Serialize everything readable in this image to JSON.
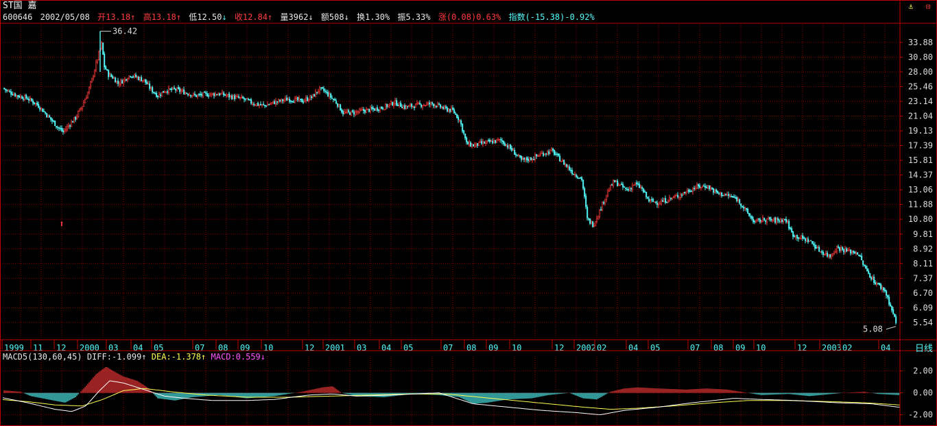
{
  "stock": {
    "title": "ST国  嘉",
    "code": "600646",
    "date": "2002/05/08",
    "open_label": "开",
    "open": "13.18",
    "high_label": "高",
    "high": "13.18",
    "low_label": "低",
    "low": "12.50",
    "close_label": "收",
    "close": "12.84",
    "volume_label": "量",
    "volume": "3962",
    "amount_label": "额",
    "amount": "508",
    "turnover_label": "换",
    "turnover": "1.30%",
    "amplitude_label": "振",
    "amplitude": "5.33%",
    "change_label": "涨",
    "change": "(0.08)0.63%",
    "index_label": "指数",
    "index": "(-15.38)-0.92%"
  },
  "macd_header": {
    "name": "MACD5(130,60,45)",
    "diff_label": "DIFF:",
    "diff": "-1.099",
    "dea_label": "DEA:",
    "dea": "-1.378",
    "macd_label": "MACD:",
    "macd": "0.559"
  },
  "controls": {
    "daily_label": "日线",
    "anchor_icon": "⚓",
    "window_icon": "⊡"
  },
  "colors": {
    "up": "#ff3b3b",
    "down": "#54fcfc",
    "grid": "#8a0000",
    "frame": "#c00000",
    "dif": "#ffffff",
    "dea": "#ffff54"
  },
  "chart_data": {
    "type": "candlestick",
    "price_axis_ticks": [
      "33.88",
      "30.80",
      "28.00",
      "25.46",
      "23.14",
      "21.04",
      "19.13",
      "17.39",
      "15.81",
      "14.37",
      "13.06",
      "11.88",
      "10.80",
      "9.81",
      "8.92",
      "8.11",
      "7.37",
      "6.70",
      "6.09",
      "5.54"
    ],
    "price_range": [
      5.0,
      38.0
    ],
    "log_scale": true,
    "max_label": "36.42",
    "min_label": "5.08",
    "date_axis_labels": [
      "1999",
      "11",
      "12",
      "2000",
      "03",
      "04",
      "05",
      "07",
      "08",
      "09",
      "10",
      "12",
      "2001",
      "03",
      "04",
      "05",
      "07",
      "08",
      "09",
      "10",
      "12",
      "2002",
      "02",
      "04",
      "05",
      "07",
      "08",
      "09",
      "10",
      "12",
      "2003",
      "02",
      "04"
    ],
    "price_keypoints": [
      [
        0,
        25.5
      ],
      [
        10,
        24.8
      ],
      [
        25,
        24.0
      ],
      [
        40,
        23.6
      ],
      [
        55,
        22.6
      ],
      [
        70,
        21.0
      ],
      [
        85,
        19.5
      ],
      [
        92,
        19.0
      ],
      [
        100,
        19.8
      ],
      [
        110,
        20.8
      ],
      [
        120,
        22.5
      ],
      [
        128,
        24.5
      ],
      [
        135,
        27.0
      ],
      [
        142,
        30.5
      ],
      [
        148,
        33.5
      ],
      [
        152,
        29.0
      ],
      [
        158,
        27.5
      ],
      [
        165,
        27.0
      ],
      [
        172,
        26.0
      ],
      [
        180,
        26.5
      ],
      [
        190,
        27.5
      ],
      [
        200,
        27.0
      ],
      [
        210,
        26.5
      ],
      [
        220,
        25.0
      ],
      [
        230,
        24.0
      ],
      [
        240,
        24.8
      ],
      [
        255,
        25.0
      ],
      [
        270,
        24.5
      ],
      [
        285,
        24.0
      ],
      [
        300,
        24.2
      ],
      [
        320,
        24.3
      ],
      [
        340,
        23.8
      ],
      [
        355,
        23.5
      ],
      [
        370,
        22.8
      ],
      [
        385,
        22.5
      ],
      [
        400,
        23.0
      ],
      [
        420,
        23.5
      ],
      [
        440,
        23.2
      ],
      [
        455,
        23.8
      ],
      [
        465,
        25.0
      ],
      [
        472,
        24.8
      ],
      [
        480,
        24.0
      ],
      [
        490,
        23.0
      ],
      [
        500,
        21.5
      ],
      [
        515,
        21.5
      ],
      [
        530,
        21.8
      ],
      [
        545,
        22.0
      ],
      [
        560,
        22.3
      ],
      [
        575,
        23.0
      ],
      [
        590,
        22.3
      ],
      [
        610,
        22.6
      ],
      [
        630,
        22.8
      ],
      [
        650,
        22.0
      ],
      [
        660,
        21.8
      ],
      [
        670,
        20.5
      ],
      [
        680,
        17.6
      ],
      [
        690,
        17.4
      ],
      [
        700,
        17.6
      ],
      [
        715,
        17.8
      ],
      [
        730,
        18.0
      ],
      [
        745,
        17.0
      ],
      [
        760,
        15.8
      ],
      [
        775,
        16.0
      ],
      [
        790,
        16.5
      ],
      [
        805,
        16.8
      ],
      [
        815,
        16.0
      ],
      [
        825,
        15.3
      ],
      [
        835,
        14.6
      ],
      [
        848,
        14.0
      ],
      [
        856,
        10.8
      ],
      [
        865,
        10.4
      ],
      [
        875,
        11.5
      ],
      [
        885,
        12.8
      ],
      [
        895,
        13.8
      ],
      [
        905,
        13.4
      ],
      [
        915,
        13.0
      ],
      [
        925,
        13.6
      ],
      [
        935,
        13.2
      ],
      [
        945,
        12.2
      ],
      [
        960,
        12.0
      ],
      [
        975,
        12.3
      ],
      [
        990,
        12.6
      ],
      [
        1000,
        12.9
      ],
      [
        1015,
        13.3
      ],
      [
        1030,
        13.4
      ],
      [
        1045,
        12.8
      ],
      [
        1060,
        12.6
      ],
      [
        1075,
        12.3
      ],
      [
        1090,
        11.2
      ],
      [
        1100,
        10.6
      ],
      [
        1115,
        10.8
      ],
      [
        1130,
        10.7
      ],
      [
        1145,
        10.8
      ],
      [
        1155,
        9.8
      ],
      [
        1165,
        9.6
      ],
      [
        1180,
        9.4
      ],
      [
        1195,
        8.8
      ],
      [
        1210,
        8.5
      ],
      [
        1220,
        9.0
      ],
      [
        1235,
        8.8
      ],
      [
        1250,
        8.7
      ],
      [
        1262,
        7.8
      ],
      [
        1275,
        7.2
      ],
      [
        1290,
        6.8
      ],
      [
        1300,
        6.0
      ],
      [
        1308,
        5.4
      ]
    ],
    "macd_axis_ticks": [
      "2.00",
      "0.00",
      "-2.00"
    ],
    "macd_range": [
      -2.4,
      2.6
    ],
    "macd_keypoints": [
      [
        0,
        0.25
      ],
      [
        30,
        0.1
      ],
      [
        45,
        -0.3
      ],
      [
        70,
        -0.6
      ],
      [
        95,
        -0.9
      ],
      [
        110,
        -0.4
      ],
      [
        125,
        0.6
      ],
      [
        140,
        1.7
      ],
      [
        155,
        2.4
      ],
      [
        165,
        2.0
      ],
      [
        180,
        1.5
      ],
      [
        200,
        1.1
      ],
      [
        215,
        0.5
      ],
      [
        230,
        -0.5
      ],
      [
        255,
        -0.7
      ],
      [
        280,
        -0.4
      ],
      [
        320,
        -0.2
      ],
      [
        360,
        -0.5
      ],
      [
        400,
        -0.3
      ],
      [
        440,
        0.1
      ],
      [
        470,
        0.5
      ],
      [
        485,
        0.6
      ],
      [
        498,
        0.0
      ],
      [
        520,
        -0.3
      ],
      [
        560,
        -0.4
      ],
      [
        600,
        -0.1
      ],
      [
        640,
        -0.2
      ],
      [
        670,
        -0.4
      ],
      [
        690,
        -1.0
      ],
      [
        710,
        -0.9
      ],
      [
        740,
        -0.6
      ],
      [
        775,
        -0.5
      ],
      [
        800,
        -0.2
      ],
      [
        830,
        0.0
      ],
      [
        850,
        -0.5
      ],
      [
        870,
        -0.6
      ],
      [
        890,
        0.1
      ],
      [
        910,
        0.4
      ],
      [
        930,
        0.5
      ],
      [
        960,
        0.4
      ],
      [
        1000,
        0.3
      ],
      [
        1030,
        0.4
      ],
      [
        1060,
        0.3
      ],
      [
        1090,
        0.0
      ],
      [
        1110,
        -0.2
      ],
      [
        1150,
        -0.1
      ],
      [
        1180,
        -0.3
      ],
      [
        1230,
        0.0
      ],
      [
        1260,
        0.1
      ],
      [
        1280,
        -0.1
      ],
      [
        1310,
        -0.2
      ]
    ],
    "dif_keypoints": [
      [
        0,
        -0.4
      ],
      [
        40,
        -0.9
      ],
      [
        80,
        -1.5
      ],
      [
        105,
        -1.7
      ],
      [
        125,
        -1.2
      ],
      [
        145,
        0.2
      ],
      [
        160,
        1.1
      ],
      [
        180,
        0.9
      ],
      [
        210,
        0.3
      ],
      [
        240,
        -0.3
      ],
      [
        270,
        -0.5
      ],
      [
        310,
        -0.7
      ],
      [
        360,
        -0.7
      ],
      [
        400,
        -0.6
      ],
      [
        450,
        -0.2
      ],
      [
        485,
        -0.1
      ],
      [
        520,
        -0.3
      ],
      [
        570,
        -0.2
      ],
      [
        640,
        0.0
      ],
      [
        690,
        -1.0
      ],
      [
        740,
        -1.3
      ],
      [
        790,
        -1.6
      ],
      [
        840,
        -1.8
      ],
      [
        875,
        -2.0
      ],
      [
        910,
        -1.6
      ],
      [
        960,
        -1.3
      ],
      [
        1010,
        -0.9
      ],
      [
        1070,
        -0.5
      ],
      [
        1110,
        -0.6
      ],
      [
        1160,
        -0.7
      ],
      [
        1220,
        -0.9
      ],
      [
        1270,
        -1.0
      ],
      [
        1310,
        -1.3
      ]
    ],
    "dea_keypoints": [
      [
        0,
        -0.6
      ],
      [
        40,
        -0.8
      ],
      [
        80,
        -1.1
      ],
      [
        120,
        -1.2
      ],
      [
        150,
        -0.6
      ],
      [
        180,
        0.2
      ],
      [
        210,
        0.4
      ],
      [
        250,
        0.1
      ],
      [
        300,
        -0.2
      ],
      [
        360,
        -0.4
      ],
      [
        420,
        -0.4
      ],
      [
        480,
        -0.3
      ],
      [
        540,
        -0.2
      ],
      [
        600,
        -0.1
      ],
      [
        650,
        -0.1
      ],
      [
        700,
        -0.4
      ],
      [
        750,
        -0.7
      ],
      [
        800,
        -1.0
      ],
      [
        850,
        -1.3
      ],
      [
        890,
        -1.5
      ],
      [
        930,
        -1.4
      ],
      [
        980,
        -1.2
      ],
      [
        1040,
        -0.9
      ],
      [
        1090,
        -0.7
      ],
      [
        1150,
        -0.7
      ],
      [
        1210,
        -0.8
      ],
      [
        1260,
        -0.9
      ],
      [
        1310,
        -1.1
      ]
    ]
  }
}
